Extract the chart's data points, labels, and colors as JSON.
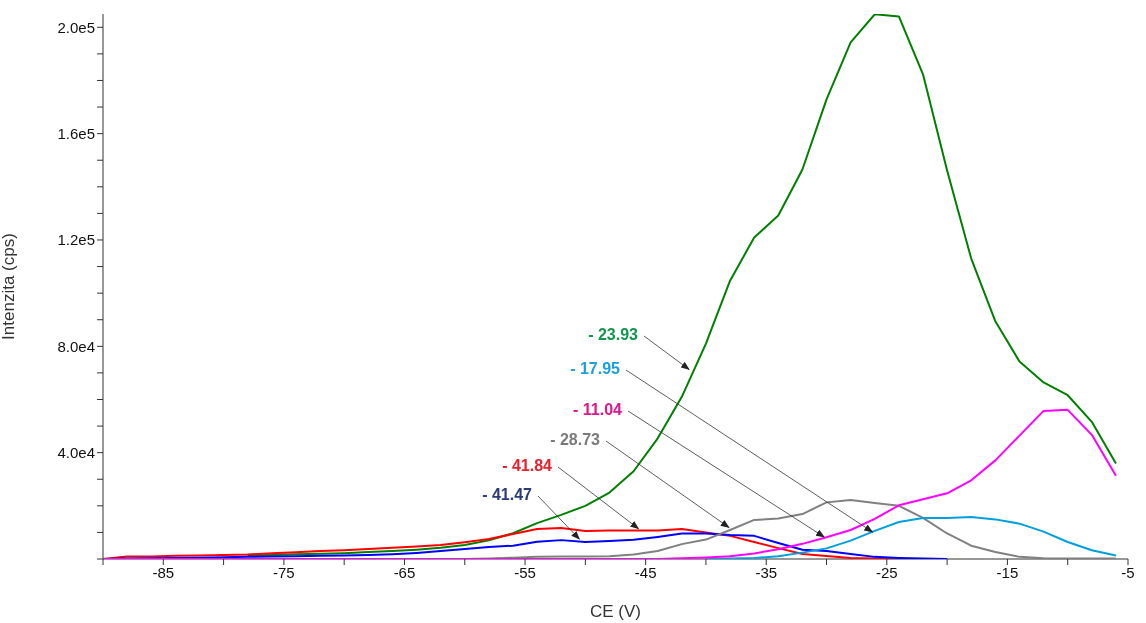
{
  "chart_data": {
    "type": "line",
    "xlabel": "CE (V)",
    "ylabel": "Intenzita (cps)",
    "x": [
      -90,
      -88,
      -86,
      -84,
      -82,
      -80,
      -78,
      -76,
      -74,
      -72,
      -70,
      -68,
      -66,
      -64,
      -62,
      -60,
      -58,
      -56,
      -54,
      -52,
      -50,
      -48,
      -46,
      -44,
      -42,
      -40,
      -38,
      -36,
      -34,
      -32,
      -30,
      -28,
      -26,
      -24,
      -22,
      -20,
      -18,
      -16,
      -14,
      -12,
      -10,
      -8,
      -6
    ],
    "series": [
      {
        "color": "#008000",
        "values": [
          null,
          null,
          null,
          null,
          null,
          null,
          1300,
          1500,
          1800,
          2000,
          2200,
          2600,
          3000,
          3500,
          4200,
          5300,
          7000,
          9700,
          13500,
          16600,
          20000,
          25000,
          33000,
          45400,
          61000,
          81000,
          104700,
          120900,
          129200,
          146500,
          172900,
          194300,
          204900,
          204100,
          182300,
          146100,
          113000,
          89400,
          74300,
          66400,
          61600,
          51600,
          35900
        ]
      },
      {
        "color": "#ff0000",
        "values": [
          0,
          900,
          900,
          1200,
          1300,
          1500,
          1700,
          2200,
          2500,
          3000,
          3300,
          3800,
          4200,
          4700,
          5300,
          6300,
          7500,
          9400,
          11300,
          11700,
          10500,
          10700,
          10700,
          10700,
          11300,
          10000,
          8700,
          6400,
          4100,
          1900,
          1100,
          400,
          200,
          100,
          null,
          null,
          null,
          null,
          null,
          null,
          null,
          null,
          null
        ]
      },
      {
        "color": "#0000ff",
        "values": [
          0,
          200,
          300,
          400,
          500,
          700,
          800,
          900,
          1000,
          1200,
          1300,
          1500,
          1800,
          2300,
          3000,
          3800,
          4500,
          5000,
          6500,
          7100,
          6400,
          6800,
          7200,
          8300,
          9600,
          9600,
          9000,
          8700,
          6000,
          3500,
          3000,
          1900,
          800,
          400,
          200,
          0,
          null,
          null,
          null,
          null,
          null,
          null,
          null
        ]
      },
      {
        "color": "#808080",
        "values": [
          null,
          null,
          null,
          null,
          null,
          null,
          null,
          null,
          null,
          null,
          null,
          null,
          null,
          null,
          null,
          0,
          200,
          500,
          800,
          900,
          900,
          1000,
          1700,
          3000,
          5600,
          7300,
          10900,
          14700,
          15200,
          16900,
          21300,
          22200,
          21100,
          20000,
          15500,
          9600,
          5000,
          2600,
          800,
          300,
          200,
          200,
          200
        ]
      },
      {
        "color": "#00a0e0",
        "values": [
          null,
          null,
          null,
          null,
          null,
          null,
          null,
          null,
          null,
          null,
          null,
          null,
          null,
          null,
          null,
          null,
          null,
          null,
          null,
          null,
          null,
          null,
          null,
          null,
          null,
          0,
          200,
          400,
          1000,
          2400,
          4000,
          6900,
          10600,
          13900,
          15400,
          15400,
          15800,
          14900,
          13300,
          10300,
          6400,
          3300,
          1300
        ]
      },
      {
        "color": "#ff00ff",
        "values": [
          0,
          0,
          0,
          0,
          0,
          0,
          0,
          0,
          0,
          0,
          0,
          0,
          0,
          0,
          0,
          0,
          0,
          0,
          0,
          0,
          0,
          0,
          0,
          0,
          300,
          600,
          1000,
          2100,
          3700,
          5700,
          8200,
          10900,
          15100,
          20200,
          22500,
          24700,
          29600,
          37100,
          46400,
          55700,
          56100,
          46700,
          31300
        ]
      }
    ],
    "xlim": [
      -90,
      -5
    ],
    "xticks": [
      {
        "value": -90,
        "label": null
      },
      -85,
      {
        "value": -80,
        "label": null
      },
      -75,
      {
        "value": -70,
        "label": null
      },
      -65,
      {
        "value": -60,
        "label": null
      },
      -55,
      {
        "value": -50,
        "label": null
      },
      -45,
      {
        "value": -40,
        "label": null
      },
      -35,
      {
        "value": -30,
        "label": null
      },
      -25,
      {
        "value": -20,
        "label": null
      },
      -15,
      {
        "value": -10,
        "label": null
      },
      -5
    ],
    "ylim": [
      0,
      205000
    ],
    "yticks": [
      {
        "value": 0,
        "label": null
      },
      {
        "value": 10000,
        "label": null
      },
      {
        "value": 20000,
        "label": null
      },
      {
        "value": 30000,
        "label": null
      },
      {
        "value": 40000,
        "label": "4.0e4"
      },
      {
        "value": 50000,
        "label": null
      },
      {
        "value": 60000,
        "label": null
      },
      {
        "value": 70000,
        "label": null
      },
      {
        "value": 80000,
        "label": "8.0e4"
      },
      {
        "value": 90000,
        "label": null
      },
      {
        "value": 100000,
        "label": null
      },
      {
        "value": 110000,
        "label": null
      },
      {
        "value": 120000,
        "label": "1.2e5"
      },
      {
        "value": 130000,
        "label": null
      },
      {
        "value": 140000,
        "label": null
      },
      {
        "value": 150000,
        "label": null
      },
      {
        "value": 160000,
        "label": "1.6e5"
      },
      {
        "value": 170000,
        "label": null
      },
      {
        "value": 180000,
        "label": null
      },
      {
        "value": 190000,
        "label": null
      },
      {
        "value": 200000,
        "label": "2.0e5"
      }
    ],
    "annotations": [
      {
        "text": "- 23.93",
        "x": -41.4,
        "y": 71300
      },
      {
        "text": "- 17.95",
        "x": -26.2,
        "y": 10200
      },
      {
        "text": "- 11.04",
        "x": -30.2,
        "y": 8300
      },
      {
        "text": "- 28.73",
        "x": -38.1,
        "y": 11900
      },
      {
        "text": "- 41.84",
        "x": -45.6,
        "y": 11400
      },
      {
        "text": "- 41.47",
        "x": -50.5,
        "y": 7500
      }
    ],
    "marker": "none",
    "line_style": "solid"
  }
}
